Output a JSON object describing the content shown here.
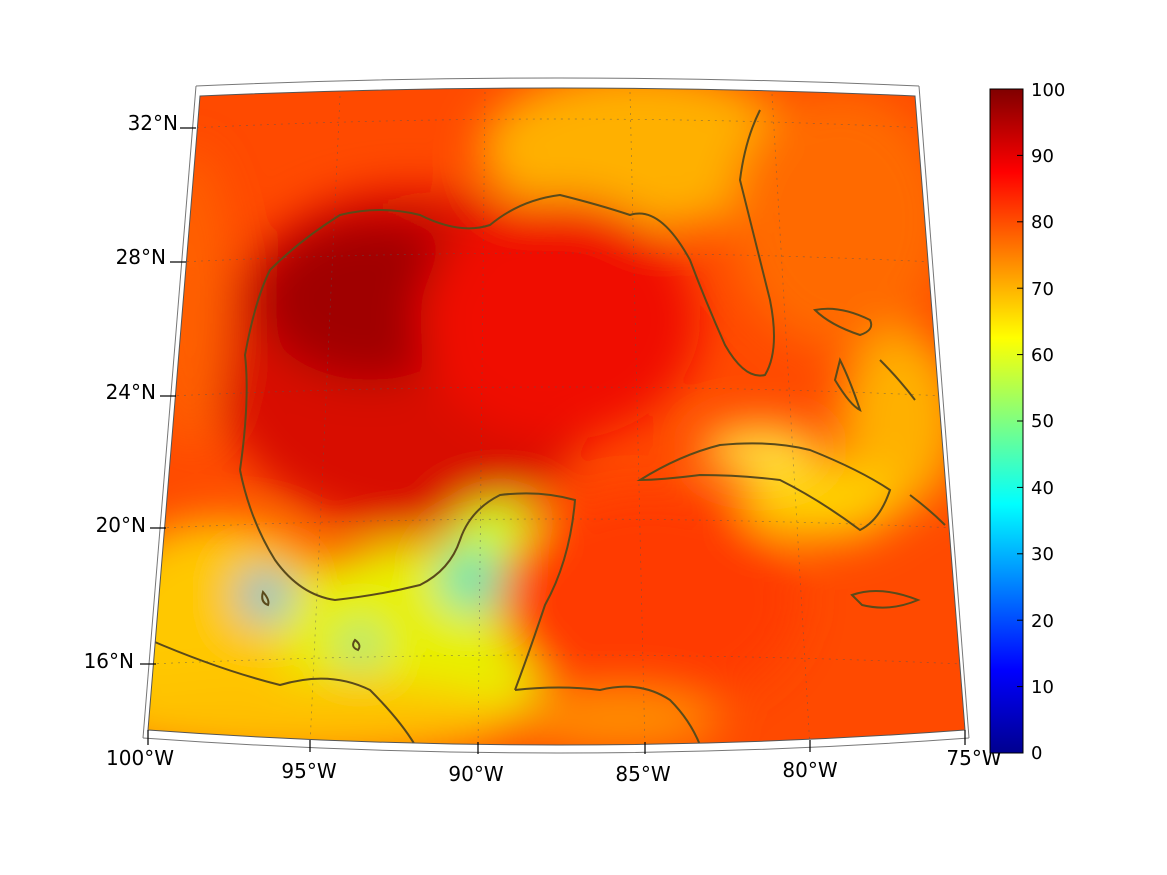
{
  "map": {
    "projection": "conic",
    "lon_range": [
      "100°W",
      "75°W"
    ],
    "lat_range": [
      "~14°N",
      "~33°N"
    ],
    "lon_ticks": [
      "100°W",
      "95°W",
      "90°W",
      "85°W",
      "80°W",
      "75°W"
    ],
    "lat_ticks": [
      "32°N",
      "28°N",
      "24°N",
      "20°N",
      "16°N"
    ],
    "grid": "dotted",
    "coastline_color": "#5a4a1a",
    "region": "Gulf of Mexico and Caribbean",
    "field_pattern": {
      "gulf_interior": "high (~85-95)",
      "yucatan_and_s_mexico_land": "low (~40-65)",
      "caribbean_sea": "~80-85",
      "atlantic_northeast": "~70-85"
    }
  },
  "colorbar": {
    "colormap": "jet",
    "min": 0,
    "max": 100,
    "ticks": [
      "100",
      "90",
      "80",
      "70",
      "60",
      "50",
      "40",
      "30",
      "20",
      "10",
      "0"
    ],
    "stops": [
      "#00008f",
      "#0000ff",
      "#0080ff",
      "#00ffff",
      "#80ff80",
      "#ffff00",
      "#ff8000",
      "#ff0000",
      "#800000"
    ]
  }
}
